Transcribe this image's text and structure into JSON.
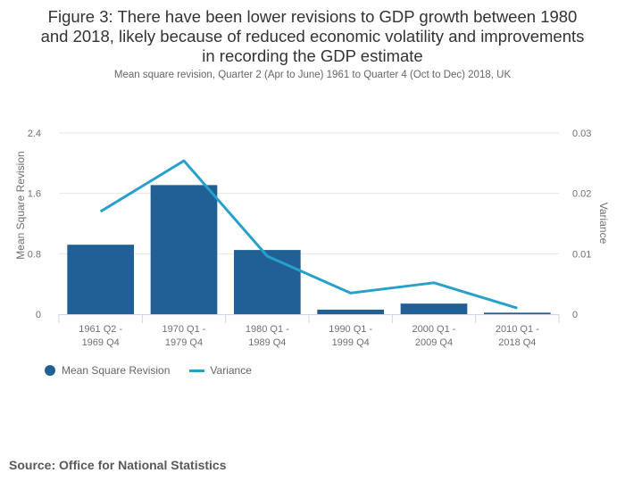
{
  "header": {
    "title_lines": [
      "Figure 3: There have been lower revisions to GDP growth between 1980",
      "and 2018, likely because of reduced economic volatility and improvements",
      "in recording the GDP estimate"
    ],
    "subtitle": "Mean square revision, Quarter 2 (Apr to June) 1961 to Quarter 4 (Oct to Dec) 2018, UK"
  },
  "footer": {
    "source": "Source: Office for National Statistics"
  },
  "colors": {
    "bar": "#206095",
    "line": "#27a0cc",
    "grid": "#e6e6e6",
    "axis": "#ccd6eb"
  },
  "chart_data": {
    "type": "bar",
    "title": "Figure 3: There have been lower revisions to GDP growth between 1980 and 2018, likely because of reduced economic volatility and improvements in recording the GDP estimate",
    "subtitle": "Mean square revision, Quarter 2 (Apr to June) 1961 to Quarter 4 (Oct to Dec) 2018, UK",
    "categories": [
      [
        "1961 Q2 -",
        "1969 Q4"
      ],
      [
        "1970 Q1 -",
        "1979 Q4"
      ],
      [
        "1980 Q1 -",
        "1989 Q4"
      ],
      [
        "1990 Q1 -",
        "1999 Q4"
      ],
      [
        "2000 Q1 -",
        "2009 Q4"
      ],
      [
        "2010 Q1 -",
        "2018 Q4"
      ]
    ],
    "series": [
      {
        "name": "Mean Square Revision",
        "type": "bar",
        "axis": "left",
        "values": [
          0.92,
          1.71,
          0.85,
          0.06,
          0.14,
          0.02
        ]
      },
      {
        "name": "Variance",
        "type": "line",
        "axis": "right",
        "values": [
          0.017,
          0.0254,
          0.0096,
          0.0035,
          0.0052,
          0.001
        ]
      }
    ],
    "ylabel": "Mean Square Revision",
    "ylim": [
      0,
      2.4
    ],
    "yticks": [
      "0",
      "0.8",
      "1.6",
      "2.4"
    ],
    "ytick_values": [
      0,
      0.8,
      1.6,
      2.4
    ],
    "y2label": "Variance",
    "y2lim": [
      0,
      0.03
    ],
    "y2ticks": [
      "0",
      "0.01",
      "0.02",
      "0.03"
    ],
    "y2tick_values": [
      0,
      0.01,
      0.02,
      0.03
    ],
    "grid": true,
    "legend_position": "bottom-left"
  }
}
